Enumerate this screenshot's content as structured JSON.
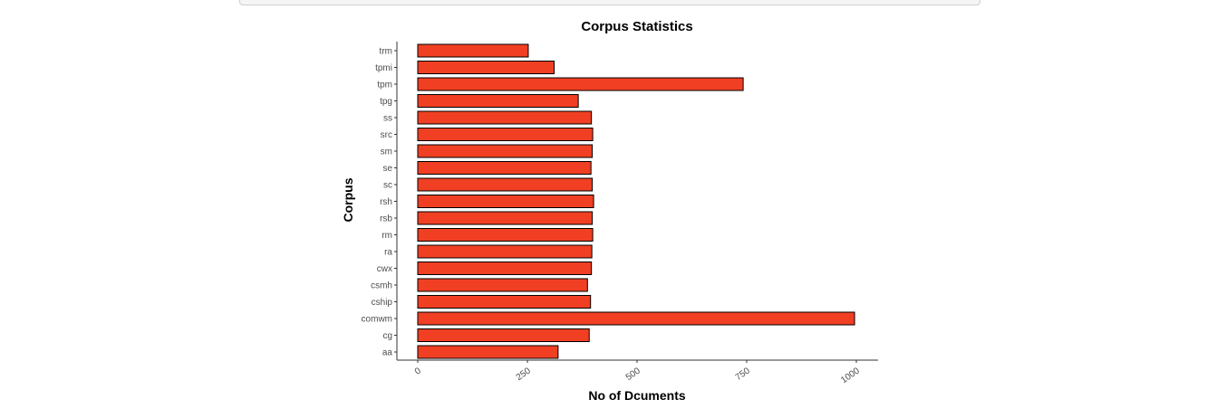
{
  "chart_data": {
    "type": "bar",
    "orientation": "horizontal",
    "title": "Corpus Statistics",
    "xlabel": "No of Dcuments",
    "ylabel": "Corpus",
    "xlim": [
      0,
      1000
    ],
    "x_ticks": [
      "0",
      "250",
      "500",
      "750",
      "1000"
    ],
    "categories": [
      "trm",
      "tpmi",
      "tpm",
      "tpg",
      "ss",
      "src",
      "sm",
      "se",
      "sc",
      "rsh",
      "rsb",
      "rm",
      "ra",
      "cwx",
      "csmh",
      "cship",
      "comwm",
      "cg",
      "aa"
    ],
    "values": [
      252,
      311,
      742,
      366,
      396,
      399,
      398,
      395,
      398,
      401,
      398,
      399,
      397,
      396,
      387,
      394,
      996,
      391,
      320
    ],
    "bar_color": "#f13f23",
    "bar_edge_color": "#000000",
    "grid": false
  }
}
